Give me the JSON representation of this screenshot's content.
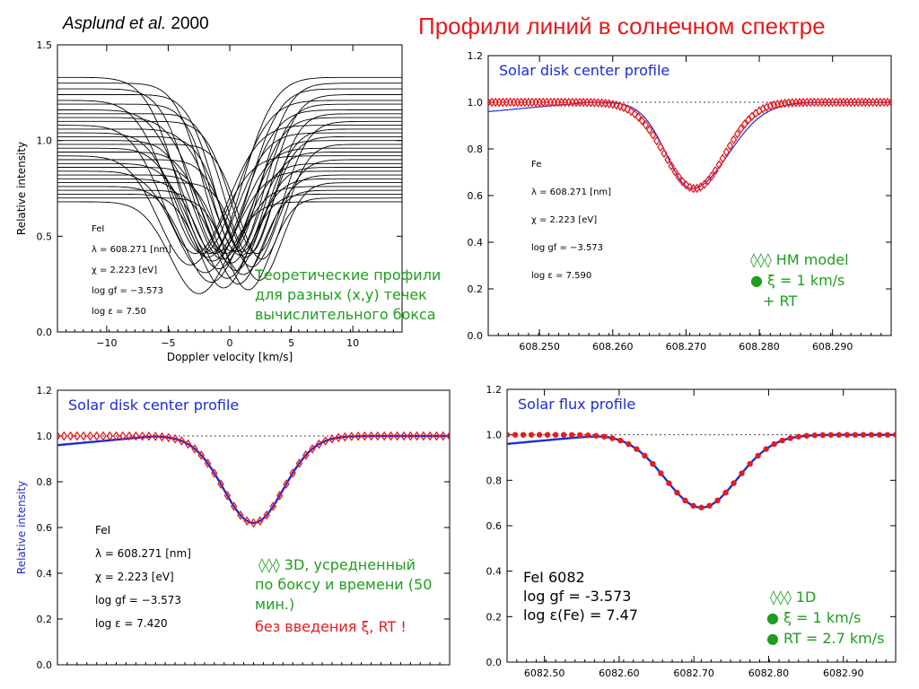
{
  "header": {
    "title": "Профили линий в солнечном спектре",
    "author_italic": "Asplund et al.",
    "author_year": "2000"
  },
  "chart_data": [
    {
      "id": "p1",
      "type": "line",
      "xlabel": "Doppler velocity [km/s]",
      "ylabel": "Relative intensity",
      "xlim": [
        -14,
        14
      ],
      "ylim": [
        0.0,
        1.5
      ],
      "xticks": [
        "−10",
        "−5",
        "0",
        "5",
        "10"
      ],
      "xtick_values": [
        -10,
        -5,
        0,
        5,
        10
      ],
      "yticks": [
        "0.0",
        "0.5",
        "1.0",
        "1.5"
      ],
      "ytick_values": [
        0,
        0.5,
        1.0,
        1.5
      ],
      "params": [
        "FeI",
        "λ = 608.271 [nm]",
        "χ =  2.223 [eV]",
        "log gf = −3.573",
        "log ε =  7.50"
      ],
      "annotation": [
        "Теоретические профили",
        "для разных  (x,y) течек",
        "вычислительного бокса"
      ],
      "annotation_color": "#1e9e1e",
      "series": [
        {
          "continuum": 1.33,
          "depth": 0.92,
          "center": -1.6,
          "width": 2.6
        },
        {
          "continuum": 1.3,
          "depth": 0.88,
          "center": 0.2,
          "width": 2.3
        },
        {
          "continuum": 1.27,
          "depth": 0.85,
          "center": -0.8,
          "width": 2.4
        },
        {
          "continuum": 1.24,
          "depth": 0.82,
          "center": 1.0,
          "width": 2.2
        },
        {
          "continuum": 1.21,
          "depth": 0.8,
          "center": -2.2,
          "width": 2.7
        },
        {
          "continuum": 1.19,
          "depth": 0.77,
          "center": 0.6,
          "width": 2.1
        },
        {
          "continuum": 1.16,
          "depth": 0.75,
          "center": -1.2,
          "width": 2.5
        },
        {
          "continuum": 1.14,
          "depth": 0.73,
          "center": 1.6,
          "width": 2.0
        },
        {
          "continuum": 1.12,
          "depth": 0.71,
          "center": -0.3,
          "width": 2.3
        },
        {
          "continuum": 1.1,
          "depth": 0.69,
          "center": 2.2,
          "width": 2.1
        },
        {
          "continuum": 1.08,
          "depth": 0.67,
          "center": -2.8,
          "width": 2.6
        },
        {
          "continuum": 1.06,
          "depth": 0.66,
          "center": 0.9,
          "width": 2.2
        },
        {
          "continuum": 1.04,
          "depth": 0.65,
          "center": -1.8,
          "width": 2.4
        },
        {
          "continuum": 1.02,
          "depth": 0.63,
          "center": 1.3,
          "width": 2.0
        },
        {
          "continuum": 1.0,
          "depth": 0.62,
          "center": -0.6,
          "width": 2.2
        },
        {
          "continuum": 0.98,
          "depth": 0.6,
          "center": 2.6,
          "width": 1.9
        },
        {
          "continuum": 0.96,
          "depth": 0.59,
          "center": -1.4,
          "width": 2.3
        },
        {
          "continuum": 0.94,
          "depth": 0.58,
          "center": 0.1,
          "width": 2.1
        },
        {
          "continuum": 0.92,
          "depth": 0.57,
          "center": -3.2,
          "width": 2.5
        },
        {
          "continuum": 0.9,
          "depth": 0.56,
          "center": 1.8,
          "width": 2.0
        },
        {
          "continuum": 0.88,
          "depth": 0.55,
          "center": -0.9,
          "width": 2.2
        },
        {
          "continuum": 0.86,
          "depth": 0.54,
          "center": 0.5,
          "width": 1.9
        },
        {
          "continuum": 0.84,
          "depth": 0.53,
          "center": -2.0,
          "width": 2.4
        },
        {
          "continuum": 0.82,
          "depth": 0.52,
          "center": 1.1,
          "width": 2.0
        },
        {
          "continuum": 0.8,
          "depth": 0.52,
          "center": -0.2,
          "width": 2.1
        },
        {
          "continuum": 0.78,
          "depth": 0.51,
          "center": 2.4,
          "width": 1.8
        },
        {
          "continuum": 0.76,
          "depth": 0.5,
          "center": -1.5,
          "width": 2.2
        },
        {
          "continuum": 0.74,
          "depth": 0.49,
          "center": 0.7,
          "width": 1.9
        },
        {
          "continuum": 0.72,
          "depth": 0.49,
          "center": -0.5,
          "width": 2.0
        },
        {
          "continuum": 0.7,
          "depth": 0.48,
          "center": 1.5,
          "width": 1.8
        },
        {
          "continuum": 0.68,
          "depth": 0.48,
          "center": -2.5,
          "width": 2.3
        }
      ]
    },
    {
      "id": "p2",
      "type": "line",
      "title": "Solar disk center profile",
      "xlim": [
        608.243,
        608.298
      ],
      "ylim": [
        0.0,
        1.2
      ],
      "xticks": [
        "608.250",
        "608.260",
        "608.270",
        "608.280",
        "608.290"
      ],
      "xtick_values": [
        608.25,
        608.26,
        608.27,
        608.28,
        608.29
      ],
      "yticks": [
        "0.0",
        "0.2",
        "0.4",
        "0.6",
        "0.8",
        "1.0",
        "1.2"
      ],
      "ytick_values": [
        0,
        0.2,
        0.4,
        0.6,
        0.8,
        1.0,
        1.2
      ],
      "params": [
        "Fe",
        "λ = 608.271 [nm]",
        "χ =  2.223 [eV]",
        "log gf = −3.573",
        "log ε =  7.590"
      ],
      "legend": [
        "◊◊◊ HM model",
        "● ξ = 1 km/s",
        "+ RT"
      ],
      "legend_color": "#1e9e1e",
      "continuum_line": 1.0,
      "observed": {
        "color": "#1c2bd6",
        "continuum": 1.0,
        "depth": 0.37,
        "center": 608.2708,
        "width": 0.0038,
        "asym": 0.3
      },
      "model": {
        "color": "#e8191c",
        "continuum": 1.0,
        "depth": 0.37,
        "center": 608.2712,
        "width": 0.0041
      },
      "model_marker": "diamond"
    },
    {
      "id": "p3",
      "type": "line",
      "title": "Solar disk center profile",
      "ylabel": "Relative intensity",
      "xlim": [
        -0.03,
        0.03
      ],
      "ylim": [
        0.0,
        1.2
      ],
      "yticks": [
        "0.0",
        "0.2",
        "0.4",
        "0.6",
        "0.8",
        "1.0",
        "1.2"
      ],
      "ytick_values": [
        0,
        0.2,
        0.4,
        0.6,
        0.8,
        1.0,
        1.2
      ],
      "params": [
        "FeI",
        "λ = 608.271 [nm]",
        "χ =  2.223 [eV]",
        "log gf = −3.573",
        "log ε =  7.420"
      ],
      "legend": [
        "◊◊◊ 3D, усредненный",
        "по  боксу и времени (50",
        "мин.)"
      ],
      "legend_color": "#1e9e1e",
      "note": "без введения ξ, RT !",
      "note_color": "#e8191c",
      "continuum_line": 1.0,
      "observed": {
        "color": "#1c2bd6",
        "continuum": 1.0,
        "depth": 0.38,
        "center": 0.0,
        "width": 0.0046,
        "asym": 0.0
      },
      "model": {
        "color": "#e8191c",
        "continuum": 1.0,
        "depth": 0.38,
        "center": 0.0,
        "width": 0.0046
      },
      "model_marker": "diamond"
    },
    {
      "id": "p4",
      "type": "line",
      "title": "Solar flux profile",
      "xlim": [
        6082.45,
        6082.97
      ],
      "ylim": [
        0.0,
        1.2
      ],
      "xticks": [
        "6082.50",
        "6082.60",
        "6082.70",
        "6082.80",
        "6082.90"
      ],
      "xtick_values": [
        6082.5,
        6082.6,
        6082.7,
        6082.8,
        6082.9
      ],
      "yticks": [
        "0.0",
        "0.2",
        "0.4",
        "0.6",
        "0.8",
        "1.0",
        "1.2"
      ],
      "ytick_values": [
        0,
        0.2,
        0.4,
        0.6,
        0.8,
        1.0,
        1.2
      ],
      "params": [
        "FeI 6082",
        "log gf = -3.573",
        "log ε(Fe) = 7.47"
      ],
      "legend": [
        "◊◊◊ 1D",
        "● ξ = 1 km/s",
        "● RT = 2.7 km/s"
      ],
      "legend_color": "#1e9e1e",
      "continuum_line": 1.0,
      "observed": {
        "color": "#1c2bd6",
        "continuum": 1.0,
        "depth": 0.32,
        "center": 6082.71,
        "width": 0.048,
        "asym": 0.0
      },
      "model": {
        "color": "#e8191c",
        "continuum": 1.0,
        "depth": 0.32,
        "center": 6082.71,
        "width": 0.048
      },
      "model_marker": "dot"
    }
  ]
}
